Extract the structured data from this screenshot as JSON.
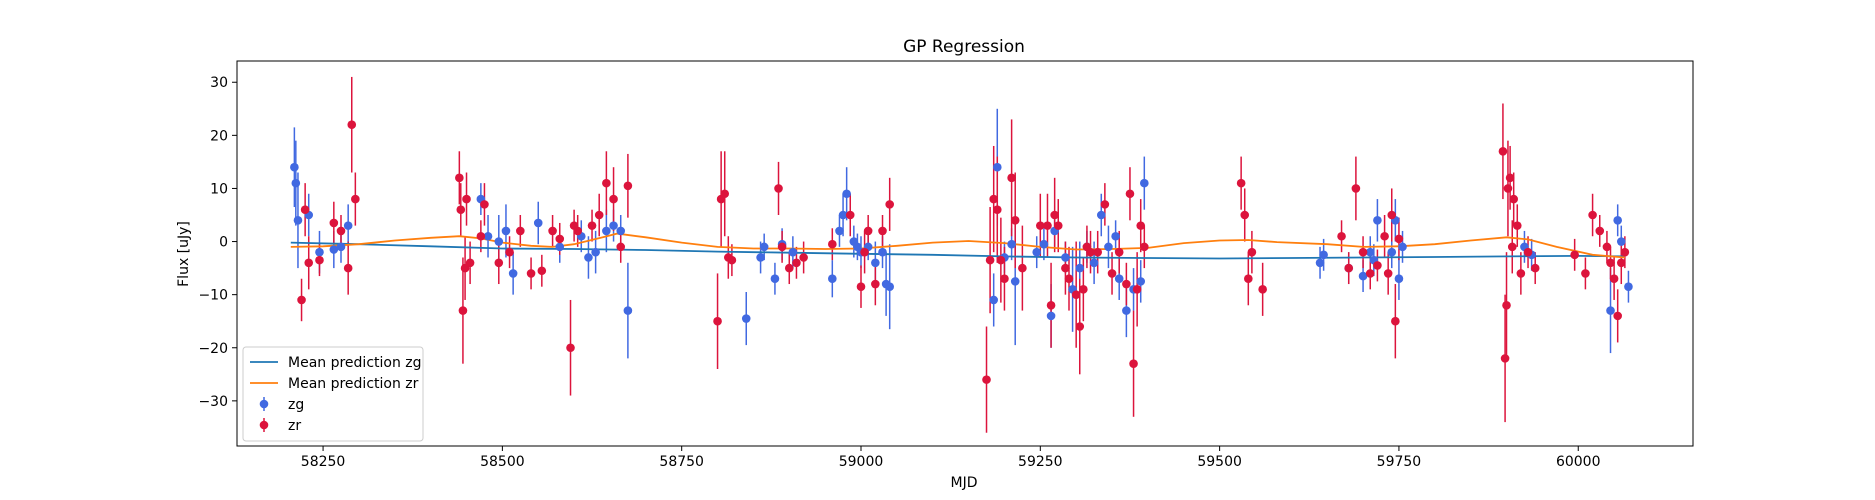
{
  "chart_data": {
    "type": "scatter",
    "title": "GP Regression",
    "xlabel": "MJD",
    "ylabel": "Flux [uJy]",
    "xlim": [
      58130,
      60160
    ],
    "ylim": [
      -38.5,
      34
    ],
    "xticks": [
      58250,
      58500,
      58750,
      59000,
      59250,
      59500,
      59750,
      60000
    ],
    "yticks": [
      -30,
      -20,
      -10,
      0,
      10,
      20,
      30
    ],
    "grid": false,
    "legend_position": "lower-left",
    "lines": [
      {
        "name": "Mean prediction zg",
        "color": "#1f77b4",
        "points": [
          [
            58205,
            -0.2
          ],
          [
            58300,
            -0.5
          ],
          [
            58400,
            -0.9
          ],
          [
            58500,
            -1.3
          ],
          [
            58600,
            -1.4
          ],
          [
            58700,
            -1.6
          ],
          [
            58800,
            -1.9
          ],
          [
            58900,
            -2.1
          ],
          [
            59000,
            -2.3
          ],
          [
            59100,
            -2.5
          ],
          [
            59200,
            -2.8
          ],
          [
            59300,
            -3.0
          ],
          [
            59400,
            -3.1
          ],
          [
            59500,
            -3.2
          ],
          [
            59600,
            -3.1
          ],
          [
            59700,
            -3.0
          ],
          [
            59800,
            -2.9
          ],
          [
            59900,
            -2.8
          ],
          [
            60000,
            -2.7
          ],
          [
            60065,
            -2.8
          ]
        ]
      },
      {
        "name": "Mean prediction zr",
        "color": "#ff7f0e",
        "points": [
          [
            58205,
            -1.0
          ],
          [
            58250,
            -0.9
          ],
          [
            58300,
            -0.5
          ],
          [
            58350,
            0.2
          ],
          [
            58400,
            0.7
          ],
          [
            58440,
            1.0
          ],
          [
            58470,
            0.6
          ],
          [
            58500,
            -0.2
          ],
          [
            58540,
            -0.8
          ],
          [
            58570,
            -1.0
          ],
          [
            58600,
            -0.5
          ],
          [
            58640,
            0.8
          ],
          [
            58660,
            1.5
          ],
          [
            58700,
            0.8
          ],
          [
            58750,
            -0.2
          ],
          [
            58800,
            -1.0
          ],
          [
            58850,
            -1.3
          ],
          [
            58900,
            -1.3
          ],
          [
            58950,
            -1.4
          ],
          [
            59000,
            -1.3
          ],
          [
            59050,
            -0.8
          ],
          [
            59100,
            -0.2
          ],
          [
            59150,
            0.1
          ],
          [
            59200,
            -0.3
          ],
          [
            59250,
            -1.0
          ],
          [
            59300,
            -1.5
          ],
          [
            59350,
            -1.4
          ],
          [
            59400,
            -1.2
          ],
          [
            59450,
            -0.3
          ],
          [
            59500,
            0.2
          ],
          [
            59540,
            0.3
          ],
          [
            59580,
            -0.1
          ],
          [
            59650,
            -0.5
          ],
          [
            59700,
            -1.0
          ],
          [
            59750,
            -0.9
          ],
          [
            59800,
            -0.5
          ],
          [
            59850,
            0.2
          ],
          [
            59900,
            0.8
          ],
          [
            59930,
            0.4
          ],
          [
            59970,
            -1.0
          ],
          [
            60020,
            -2.5
          ],
          [
            60065,
            -3.0
          ]
        ]
      }
    ],
    "series": [
      {
        "name": "zg",
        "color": "#4169e1",
        "points": [
          [
            58210,
            14,
            7.5
          ],
          [
            58212,
            11,
            8
          ],
          [
            58215,
            4,
            9
          ],
          [
            58230,
            5,
            4
          ],
          [
            58245,
            -2,
            4
          ],
          [
            58265,
            -1.5,
            3.5
          ],
          [
            58275,
            -1,
            3
          ],
          [
            58285,
            3,
            4
          ],
          [
            58470,
            8,
            3
          ],
          [
            58480,
            1,
            4
          ],
          [
            58495,
            0,
            5
          ],
          [
            58505,
            2,
            5
          ],
          [
            58515,
            -6,
            4
          ],
          [
            58550,
            3.5,
            4
          ],
          [
            58580,
            -1,
            3
          ],
          [
            58610,
            1,
            3
          ],
          [
            58620,
            -3,
            4
          ],
          [
            58630,
            -2,
            4
          ],
          [
            58645,
            2,
            4
          ],
          [
            58655,
            3,
            3
          ],
          [
            58665,
            2,
            3
          ],
          [
            58675,
            -13,
            9
          ],
          [
            58840,
            -14.5,
            5
          ],
          [
            58860,
            -3,
            3
          ],
          [
            58865,
            -1,
            2.5
          ],
          [
            58880,
            -7,
            3
          ],
          [
            58890,
            -0.5,
            3
          ],
          [
            58905,
            -2,
            3
          ],
          [
            58960,
            -7,
            3.5
          ],
          [
            58970,
            2,
            3
          ],
          [
            58975,
            5,
            4
          ],
          [
            58980,
            9,
            5
          ],
          [
            58990,
            0,
            3
          ],
          [
            58995,
            -1,
            2.5
          ],
          [
            59000,
            -2,
            3
          ],
          [
            59010,
            -1,
            2.5
          ],
          [
            59020,
            -4,
            4
          ],
          [
            59030,
            -2,
            3
          ],
          [
            59035,
            -8,
            6
          ],
          [
            59040,
            -8.5,
            8
          ],
          [
            59185,
            -11,
            5
          ],
          [
            59190,
            14,
            11
          ],
          [
            59200,
            -3,
            3
          ],
          [
            59210,
            -0.5,
            3
          ],
          [
            59215,
            -7.5,
            12
          ],
          [
            59245,
            -2,
            3
          ],
          [
            59255,
            -0.5,
            3
          ],
          [
            59265,
            -14,
            6
          ],
          [
            59270,
            2,
            3
          ],
          [
            59285,
            -3,
            3
          ],
          [
            59295,
            -9,
            8
          ],
          [
            59305,
            -5,
            5
          ],
          [
            59315,
            -1,
            3
          ],
          [
            59325,
            -4,
            4
          ],
          [
            59335,
            5,
            4
          ],
          [
            59345,
            -1,
            4
          ],
          [
            59355,
            1,
            3
          ],
          [
            59360,
            -7,
            4
          ],
          [
            59370,
            -13,
            5
          ],
          [
            59380,
            -9,
            4
          ],
          [
            59390,
            -7.5,
            4
          ],
          [
            59395,
            11,
            5
          ],
          [
            59640,
            -4,
            3
          ],
          [
            59645,
            -2.5,
            3
          ],
          [
            59680,
            -5,
            3
          ],
          [
            59700,
            -6.5,
            3
          ],
          [
            59710,
            -2,
            3
          ],
          [
            59715,
            -3.5,
            3
          ],
          [
            59720,
            4,
            4
          ],
          [
            59740,
            -2,
            3
          ],
          [
            59745,
            4,
            4
          ],
          [
            59750,
            -7,
            4
          ],
          [
            59755,
            -1,
            3
          ],
          [
            59925,
            -1,
            3
          ],
          [
            59935,
            -2.5,
            3
          ],
          [
            60045,
            -13,
            8
          ],
          [
            60055,
            4,
            3
          ],
          [
            60060,
            0,
            3
          ],
          [
            60070,
            -8.5,
            3
          ]
        ]
      },
      {
        "name": "zr",
        "color": "#dc143c",
        "points": [
          [
            58220,
            -11,
            4
          ],
          [
            58225,
            6,
            5
          ],
          [
            58230,
            -4,
            5
          ],
          [
            58245,
            -3.5,
            3
          ],
          [
            58265,
            3.5,
            4
          ],
          [
            58275,
            2,
            3
          ],
          [
            58285,
            -5,
            5
          ],
          [
            58290,
            22,
            9
          ],
          [
            58295,
            8,
            5
          ],
          [
            58440,
            12,
            5
          ],
          [
            58442,
            6,
            5
          ],
          [
            58445,
            -13,
            10
          ],
          [
            58448,
            -5,
            6
          ],
          [
            58450,
            8,
            5
          ],
          [
            58455,
            -4,
            4
          ],
          [
            58470,
            1,
            3
          ],
          [
            58475,
            7,
            4
          ],
          [
            58495,
            -4,
            4
          ],
          [
            58510,
            -2,
            3
          ],
          [
            58525,
            2,
            3
          ],
          [
            58540,
            -6,
            3
          ],
          [
            58555,
            -5.5,
            3
          ],
          [
            58570,
            2,
            3
          ],
          [
            58580,
            0.5,
            3
          ],
          [
            58595,
            -20,
            9
          ],
          [
            58600,
            3,
            3
          ],
          [
            58605,
            2,
            3
          ],
          [
            58625,
            3,
            3
          ],
          [
            58635,
            5,
            4
          ],
          [
            58645,
            11,
            6
          ],
          [
            58655,
            8,
            6
          ],
          [
            58665,
            -1,
            3
          ],
          [
            58675,
            10.5,
            6
          ],
          [
            58800,
            -15,
            9
          ],
          [
            58805,
            8,
            9
          ],
          [
            58810,
            9,
            8
          ],
          [
            58815,
            -3,
            4
          ],
          [
            58820,
            -3.5,
            3
          ],
          [
            58885,
            10,
            5
          ],
          [
            58890,
            -1,
            3
          ],
          [
            58900,
            -5,
            3
          ],
          [
            58910,
            -4,
            3
          ],
          [
            58920,
            -3,
            3
          ],
          [
            58960,
            -0.5,
            3
          ],
          [
            58985,
            5,
            4
          ],
          [
            59000,
            -8.5,
            4
          ],
          [
            59005,
            -2,
            4
          ],
          [
            59010,
            2,
            3
          ],
          [
            59020,
            -8,
            4
          ],
          [
            59030,
            2,
            3
          ],
          [
            59040,
            7,
            5
          ],
          [
            59175,
            -26,
            10
          ],
          [
            59180,
            -3.5,
            10
          ],
          [
            59185,
            8,
            10
          ],
          [
            59190,
            6,
            10
          ],
          [
            59195,
            -3.5,
            8
          ],
          [
            59200,
            -7,
            6
          ],
          [
            59210,
            12,
            11
          ],
          [
            59215,
            4,
            9
          ],
          [
            59225,
            -5,
            8
          ],
          [
            59250,
            3,
            6
          ],
          [
            59260,
            3,
            6
          ],
          [
            59265,
            -12,
            8
          ],
          [
            59270,
            5,
            7
          ],
          [
            59275,
            3,
            5
          ],
          [
            59285,
            -5,
            5
          ],
          [
            59290,
            -7,
            6
          ],
          [
            59300,
            -10,
            10
          ],
          [
            59305,
            -16,
            9
          ],
          [
            59310,
            -9,
            6
          ],
          [
            59315,
            -1,
            4
          ],
          [
            59320,
            -2,
            4
          ],
          [
            59330,
            -2,
            4
          ],
          [
            59340,
            7,
            4
          ],
          [
            59350,
            -6,
            4
          ],
          [
            59360,
            -2,
            4
          ],
          [
            59370,
            -8,
            4
          ],
          [
            59375,
            9,
            5
          ],
          [
            59380,
            -23,
            10
          ],
          [
            59385,
            -9,
            7
          ],
          [
            59390,
            3,
            5
          ],
          [
            59395,
            -1,
            4
          ],
          [
            59530,
            11,
            5
          ],
          [
            59535,
            5,
            5
          ],
          [
            59540,
            -7,
            5
          ],
          [
            59545,
            -2,
            4
          ],
          [
            59560,
            -9,
            5
          ],
          [
            59670,
            1,
            3
          ],
          [
            59680,
            -5,
            3
          ],
          [
            59690,
            10,
            6
          ],
          [
            59700,
            -2,
            3
          ],
          [
            59710,
            -6,
            3
          ],
          [
            59720,
            -4.5,
            3
          ],
          [
            59730,
            1,
            4
          ],
          [
            59735,
            -6,
            4
          ],
          [
            59740,
            5,
            5
          ],
          [
            59745,
            -15,
            7
          ],
          [
            59750,
            0.5,
            4
          ],
          [
            59895,
            17,
            9
          ],
          [
            59898,
            -22,
            12
          ],
          [
            59900,
            -12,
            10
          ],
          [
            59902,
            10,
            9
          ],
          [
            59905,
            12,
            6
          ],
          [
            59908,
            -1,
            5
          ],
          [
            59910,
            8,
            5
          ],
          [
            59915,
            3,
            4
          ],
          [
            59920,
            -6,
            4
          ],
          [
            59930,
            -2,
            3
          ],
          [
            59940,
            -5,
            3
          ],
          [
            59995,
            -2.5,
            3
          ],
          [
            60010,
            -6,
            3
          ],
          [
            60020,
            5,
            4
          ],
          [
            60030,
            2,
            3
          ],
          [
            60040,
            -1,
            3
          ],
          [
            60045,
            -4,
            3
          ],
          [
            60050,
            -7,
            4
          ],
          [
            60055,
            -14,
            5
          ],
          [
            60060,
            -4,
            4
          ],
          [
            60065,
            -2,
            3
          ]
        ]
      }
    ]
  }
}
